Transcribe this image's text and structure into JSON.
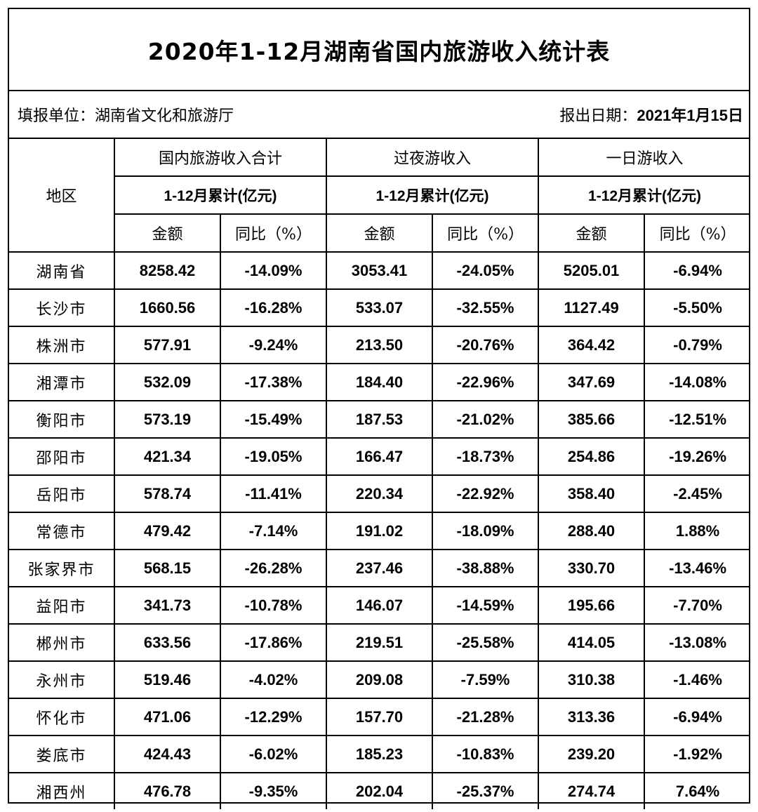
{
  "title": "2020年1-12月湖南省国内旅游收入统计表",
  "reporter_label": "填报单位：湖南省文化和旅游厅",
  "date_label": "报出日期：",
  "date_value": "2021年1月15日",
  "header": {
    "region": "地区",
    "groups": [
      "国内旅游收入合计",
      "过夜游收入",
      "一日游收入"
    ],
    "period": "1-12月累计(亿元)",
    "amount": "金额",
    "yoy": "同比（%）"
  },
  "rows": [
    [
      "湖南省",
      "8258.42",
      "-14.09%",
      "3053.41",
      "-24.05%",
      "5205.01",
      "-6.94%"
    ],
    [
      "长沙市",
      "1660.56",
      "-16.28%",
      "533.07",
      "-32.55%",
      "1127.49",
      "-5.50%"
    ],
    [
      "株洲市",
      "577.91",
      "-9.24%",
      "213.50",
      "-20.76%",
      "364.42",
      "-0.79%"
    ],
    [
      "湘潭市",
      "532.09",
      "-17.38%",
      "184.40",
      "-22.96%",
      "347.69",
      "-14.08%"
    ],
    [
      "衡阳市",
      "573.19",
      "-15.49%",
      "187.53",
      "-21.02%",
      "385.66",
      "-12.51%"
    ],
    [
      "邵阳市",
      "421.34",
      "-19.05%",
      "166.47",
      "-18.73%",
      "254.86",
      "-19.26%"
    ],
    [
      "岳阳市",
      "578.74",
      "-11.41%",
      "220.34",
      "-22.92%",
      "358.40",
      "-2.45%"
    ],
    [
      "常德市",
      "479.42",
      "-7.14%",
      "191.02",
      "-18.09%",
      "288.40",
      "1.88%"
    ],
    [
      "张家界市",
      "568.15",
      "-26.28%",
      "237.46",
      "-38.88%",
      "330.70",
      "-13.46%"
    ],
    [
      "益阳市",
      "341.73",
      "-10.78%",
      "146.07",
      "-14.59%",
      "195.66",
      "-7.70%"
    ],
    [
      "郴州市",
      "633.56",
      "-17.86%",
      "219.51",
      "-25.58%",
      "414.05",
      "-13.08%"
    ],
    [
      "永州市",
      "519.46",
      "-4.02%",
      "209.08",
      "-7.59%",
      "310.38",
      "-1.46%"
    ],
    [
      "怀化市",
      "471.06",
      "-12.29%",
      "157.70",
      "-21.28%",
      "313.36",
      "-6.94%"
    ],
    [
      "娄底市",
      "424.43",
      "-6.02%",
      "185.23",
      "-10.83%",
      "239.20",
      "-1.92%"
    ],
    [
      "湘西州",
      "476.78",
      "-9.35%",
      "202.04",
      "-25.37%",
      "274.74",
      "7.64%"
    ]
  ]
}
